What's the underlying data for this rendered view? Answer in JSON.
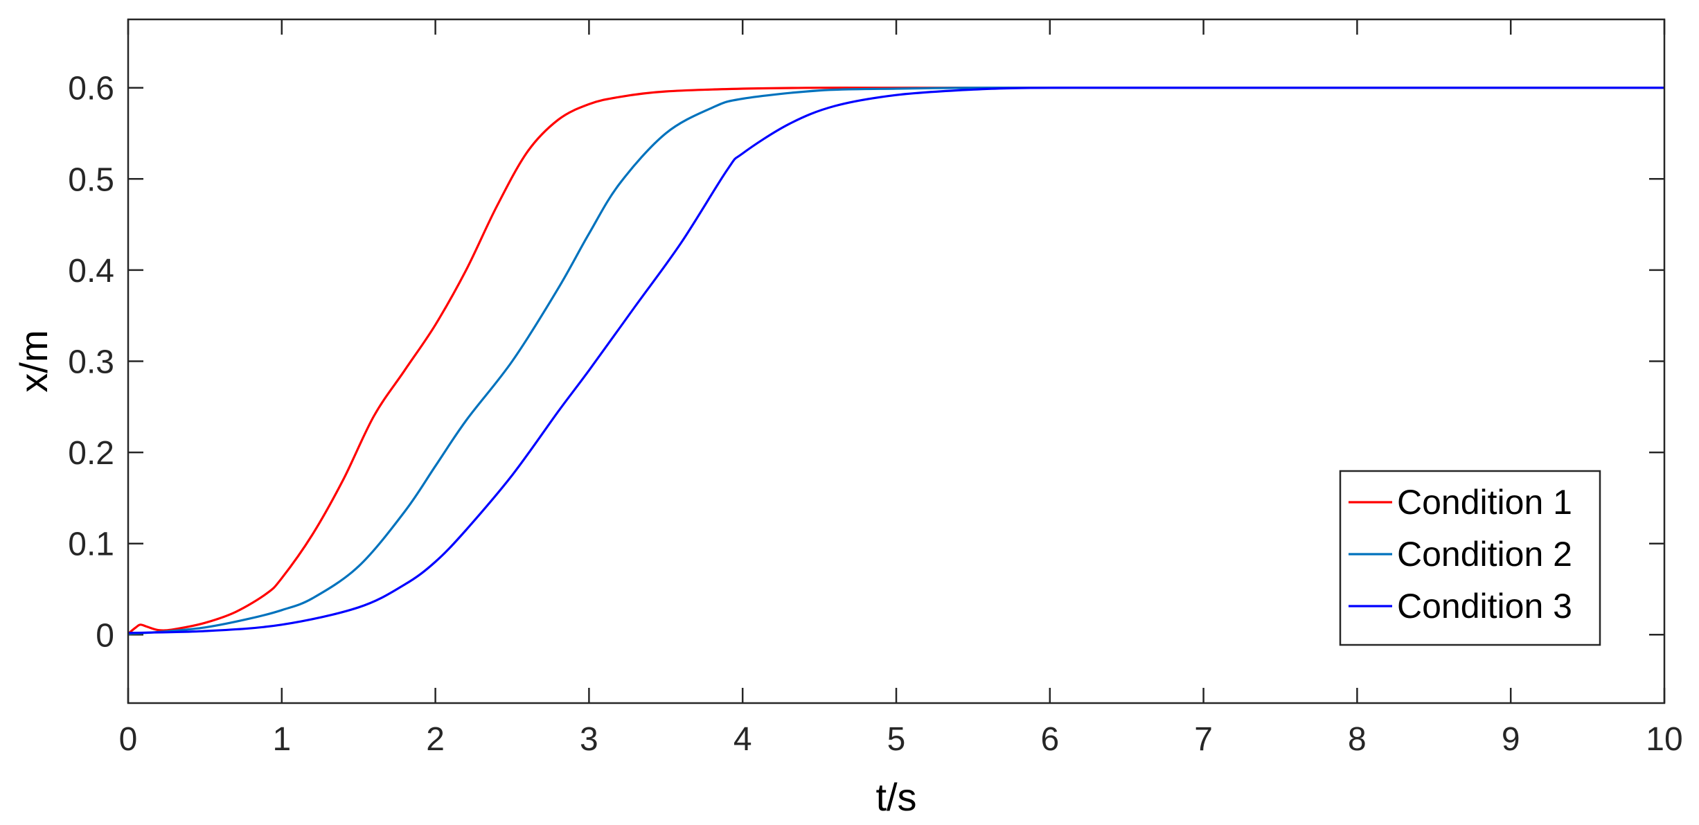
{
  "chart_data": {
    "type": "line",
    "title": "",
    "xlabel": "t/s",
    "ylabel": "x/m",
    "xlim": [
      0,
      10
    ],
    "ylim": [
      -0.075,
      0.675
    ],
    "xticks": [
      0,
      1,
      2,
      3,
      4,
      5,
      6,
      7,
      8,
      9,
      10
    ],
    "yticks": [
      0,
      0.1,
      0.2,
      0.3,
      0.4,
      0.5,
      0.6
    ],
    "xtick_labels": [
      "0",
      "1",
      "2",
      "3",
      "4",
      "5",
      "6",
      "7",
      "8",
      "9",
      "10"
    ],
    "ytick_labels": [
      "0",
      "0.1",
      "0.2",
      "0.3",
      "0.4",
      "0.5",
      "0.6"
    ],
    "grid": false,
    "legend_position": "bottom-right",
    "series": [
      {
        "name": "Condition 1",
        "color": "#ff0000",
        "x": [
          0,
          0.05,
          0.08,
          0.12,
          0.2,
          0.3,
          0.5,
          0.7,
          0.9,
          1.0,
          1.2,
          1.4,
          1.6,
          1.8,
          2.0,
          2.2,
          2.4,
          2.6,
          2.8,
          3.0,
          3.2,
          3.5,
          4.0,
          4.5,
          5.0,
          6.0,
          8.0,
          10.0
        ],
        "y": [
          0.001,
          0.008,
          0.011,
          0.009,
          0.005,
          0.006,
          0.013,
          0.025,
          0.045,
          0.062,
          0.11,
          0.17,
          0.24,
          0.29,
          0.34,
          0.4,
          0.47,
          0.53,
          0.565,
          0.582,
          0.59,
          0.596,
          0.599,
          0.6,
          0.6,
          0.6,
          0.6,
          0.6
        ]
      },
      {
        "name": "Condition 2",
        "color": "#0072bd",
        "x": [
          0,
          0.2,
          0.5,
          0.8,
          1.0,
          1.2,
          1.5,
          1.8,
          2.0,
          2.2,
          2.5,
          2.8,
          3.0,
          3.2,
          3.5,
          3.8,
          4.0,
          4.5,
          5.0,
          5.5,
          6.0,
          8.0,
          10.0
        ],
        "y": [
          0.001,
          0.003,
          0.008,
          0.018,
          0.027,
          0.04,
          0.075,
          0.135,
          0.185,
          0.235,
          0.3,
          0.38,
          0.44,
          0.495,
          0.55,
          0.578,
          0.588,
          0.597,
          0.599,
          0.6,
          0.6,
          0.6,
          0.6
        ]
      },
      {
        "name": "Condition 3",
        "color": "#0000ff",
        "x": [
          0,
          0.5,
          1.0,
          1.5,
          1.8,
          2.0,
          2.2,
          2.5,
          2.8,
          3.0,
          3.3,
          3.6,
          3.9,
          4.0,
          4.3,
          4.6,
          5.0,
          5.5,
          6.0,
          7.0,
          10.0
        ],
        "y": [
          0.002,
          0.004,
          0.011,
          0.03,
          0.055,
          0.08,
          0.115,
          0.175,
          0.245,
          0.29,
          0.36,
          0.43,
          0.51,
          0.528,
          0.56,
          0.58,
          0.592,
          0.598,
          0.6,
          0.6,
          0.6
        ]
      }
    ]
  }
}
